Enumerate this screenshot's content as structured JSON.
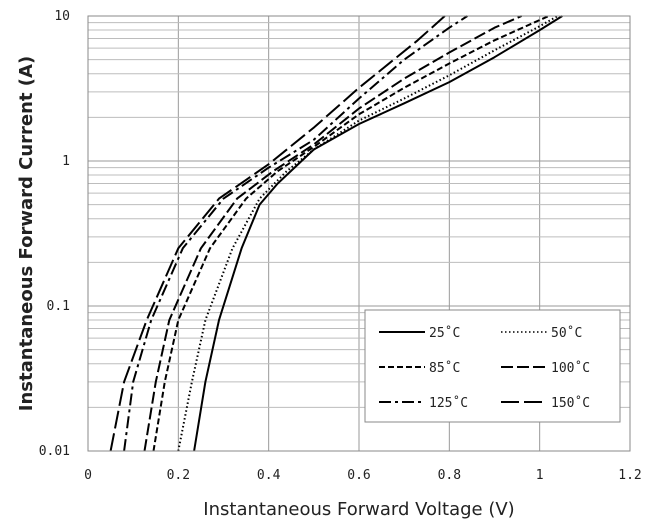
{
  "chart_data": {
    "type": "line",
    "title": "",
    "xlabel": "Instantaneous Forward Voltage (V)",
    "ylabel": "Instantaneous Forward Current (A)",
    "xlim": [
      0,
      1.2
    ],
    "ylim": [
      0.01,
      10
    ],
    "yscale": "log",
    "grid": true,
    "legend_position": "bottom-right",
    "x_ticks": [
      "0",
      "0.2",
      "0.4",
      "0.6",
      "0.8",
      "1",
      "1.2"
    ],
    "y_ticks": [
      "0.01",
      "0.1",
      "1",
      "10"
    ],
    "series": [
      {
        "name": "25˚C",
        "dash": "solid",
        "points": [
          [
            0.235,
            0.01
          ],
          [
            0.26,
            0.03
          ],
          [
            0.29,
            0.08
          ],
          [
            0.34,
            0.25
          ],
          [
            0.38,
            0.5
          ],
          [
            0.42,
            0.7
          ],
          [
            0.5,
            1.2
          ],
          [
            0.6,
            1.8
          ],
          [
            0.7,
            2.5
          ],
          [
            0.8,
            3.5
          ],
          [
            0.9,
            5.2
          ],
          [
            1.0,
            8.0
          ],
          [
            1.05,
            10
          ]
        ]
      },
      {
        "name": "50˚C",
        "dash": "dotted",
        "points": [
          [
            0.2,
            0.01
          ],
          [
            0.23,
            0.03
          ],
          [
            0.26,
            0.08
          ],
          [
            0.32,
            0.25
          ],
          [
            0.38,
            0.55
          ],
          [
            0.44,
            0.85
          ],
          [
            0.5,
            1.2
          ],
          [
            0.6,
            1.9
          ],
          [
            0.7,
            2.7
          ],
          [
            0.8,
            3.9
          ],
          [
            0.9,
            5.8
          ],
          [
            1.0,
            8.5
          ],
          [
            1.04,
            10
          ]
        ]
      },
      {
        "name": "85˚C",
        "dash": "short-dash",
        "points": [
          [
            0.145,
            0.01
          ],
          [
            0.17,
            0.03
          ],
          [
            0.2,
            0.08
          ],
          [
            0.27,
            0.25
          ],
          [
            0.35,
            0.55
          ],
          [
            0.42,
            0.85
          ],
          [
            0.5,
            1.25
          ],
          [
            0.6,
            2.1
          ],
          [
            0.7,
            3.2
          ],
          [
            0.8,
            4.7
          ],
          [
            0.9,
            6.8
          ],
          [
            1.02,
            10
          ]
        ]
      },
      {
        "name": "100˚C",
        "dash": "long-dash",
        "points": [
          [
            0.125,
            0.01
          ],
          [
            0.15,
            0.03
          ],
          [
            0.18,
            0.08
          ],
          [
            0.25,
            0.25
          ],
          [
            0.33,
            0.55
          ],
          [
            0.41,
            0.85
          ],
          [
            0.5,
            1.3
          ],
          [
            0.6,
            2.3
          ],
          [
            0.7,
            3.7
          ],
          [
            0.8,
            5.6
          ],
          [
            0.9,
            8.3
          ],
          [
            0.96,
            10
          ]
        ]
      },
      {
        "name": "125˚C",
        "dash": "dash-dot",
        "points": [
          [
            0.08,
            0.01
          ],
          [
            0.1,
            0.03
          ],
          [
            0.14,
            0.08
          ],
          [
            0.21,
            0.25
          ],
          [
            0.3,
            0.55
          ],
          [
            0.4,
            0.9
          ],
          [
            0.5,
            1.4
          ],
          [
            0.6,
            2.7
          ],
          [
            0.7,
            5.0
          ],
          [
            0.8,
            8.3
          ],
          [
            0.84,
            10
          ]
        ]
      },
      {
        "name": "150˚C",
        "dash": "long-dash-gap",
        "points": [
          [
            0.05,
            0.01
          ],
          [
            0.08,
            0.03
          ],
          [
            0.13,
            0.08
          ],
          [
            0.2,
            0.25
          ],
          [
            0.29,
            0.55
          ],
          [
            0.4,
            0.95
          ],
          [
            0.5,
            1.7
          ],
          [
            0.6,
            3.2
          ],
          [
            0.67,
            4.8
          ],
          [
            0.73,
            6.8
          ],
          [
            0.79,
            10
          ]
        ]
      }
    ]
  }
}
